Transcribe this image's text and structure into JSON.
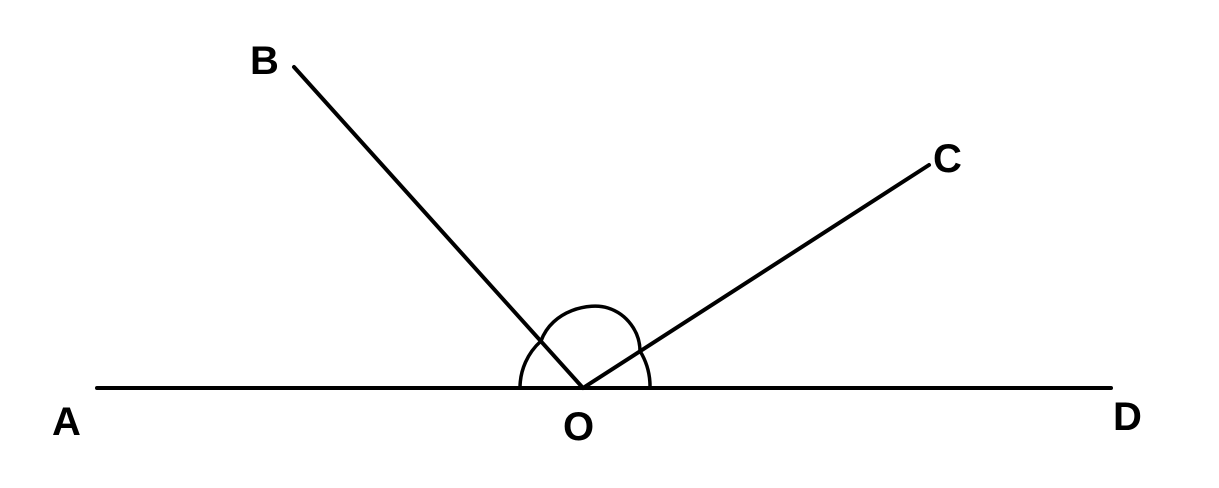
{
  "diagram": {
    "labels": {
      "A": "A",
      "B": "B",
      "C": "C",
      "D": "D",
      "O": "O"
    },
    "segments": [
      "AD",
      "OB",
      "OC"
    ],
    "angle_marks": [
      "∠AOB",
      "∠BOC",
      "∠COD"
    ],
    "line_color": "#000000",
    "background": "#ffffff"
  }
}
